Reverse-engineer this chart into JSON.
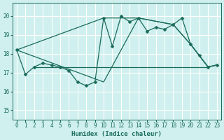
{
  "xlabel": "Humidex (Indice chaleur)",
  "bg_color": "#cff0ee",
  "grid_color": "#ffffff",
  "line_color": "#1a6b5a",
  "xlim": [
    -0.5,
    23.5
  ],
  "ylim": [
    14.5,
    20.7
  ],
  "yticks": [
    15,
    16,
    17,
    18,
    19,
    20
  ],
  "xticks": [
    0,
    1,
    2,
    3,
    4,
    5,
    6,
    7,
    8,
    9,
    10,
    11,
    12,
    13,
    14,
    15,
    16,
    17,
    18,
    19,
    20,
    21,
    22,
    23
  ],
  "series": [
    {
      "x": [
        0,
        1,
        2,
        3,
        4,
        5,
        6,
        7,
        8,
        9,
        10,
        11,
        12,
        13,
        14,
        15,
        16,
        17,
        18,
        19,
        20,
        21,
        22,
        23
      ],
      "y": [
        18.2,
        16.9,
        17.3,
        17.5,
        17.4,
        17.3,
        17.1,
        16.5,
        16.3,
        16.5,
        19.9,
        18.4,
        20.0,
        19.7,
        19.9,
        19.2,
        19.4,
        19.3,
        19.55,
        19.9,
        18.5,
        17.9,
        17.3,
        17.4
      ],
      "marker": "D",
      "markersize": 2.5,
      "linewidth": 0.9
    },
    {
      "x": [
        0,
        10,
        14,
        18,
        20,
        22,
        23
      ],
      "y": [
        18.2,
        19.9,
        19.9,
        19.55,
        18.5,
        17.3,
        17.4
      ],
      "marker": null,
      "markersize": 0,
      "linewidth": 0.9
    },
    {
      "x": [
        2,
        22
      ],
      "y": [
        17.3,
        17.3
      ],
      "marker": null,
      "markersize": 0,
      "linewidth": 0.9
    },
    {
      "x": [
        0,
        10,
        14,
        18,
        20,
        22,
        23
      ],
      "y": [
        18.2,
        16.5,
        19.9,
        19.55,
        18.5,
        17.3,
        17.4
      ],
      "marker": null,
      "markersize": 0,
      "linewidth": 0.9
    }
  ]
}
